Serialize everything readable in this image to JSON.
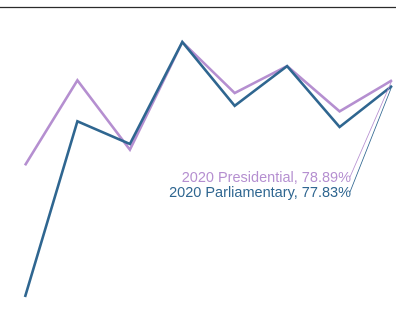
{
  "chart_data": {
    "type": "line",
    "title": "",
    "xlabel": "",
    "ylabel": "",
    "grid": false,
    "x": [
      1,
      2,
      3,
      4,
      5,
      6,
      7,
      8
    ],
    "ylim": [
      60,
      82
    ],
    "series": [
      {
        "name": "2020 Presidential",
        "label": "2020 Presidential, 78.89%",
        "color": "#b58fd0",
        "values": [
          70.0,
          76.0,
          71.1,
          78.7,
          75.1,
          77.0,
          73.8,
          76.0
        ]
      },
      {
        "name": "2020 Parliamentary",
        "label": "2020 Parliamentary, 77.83%",
        "color": "#2f6690",
        "values": [
          60.7,
          73.1,
          71.5,
          78.7,
          74.2,
          77.0,
          72.7,
          75.6
        ]
      }
    ]
  }
}
